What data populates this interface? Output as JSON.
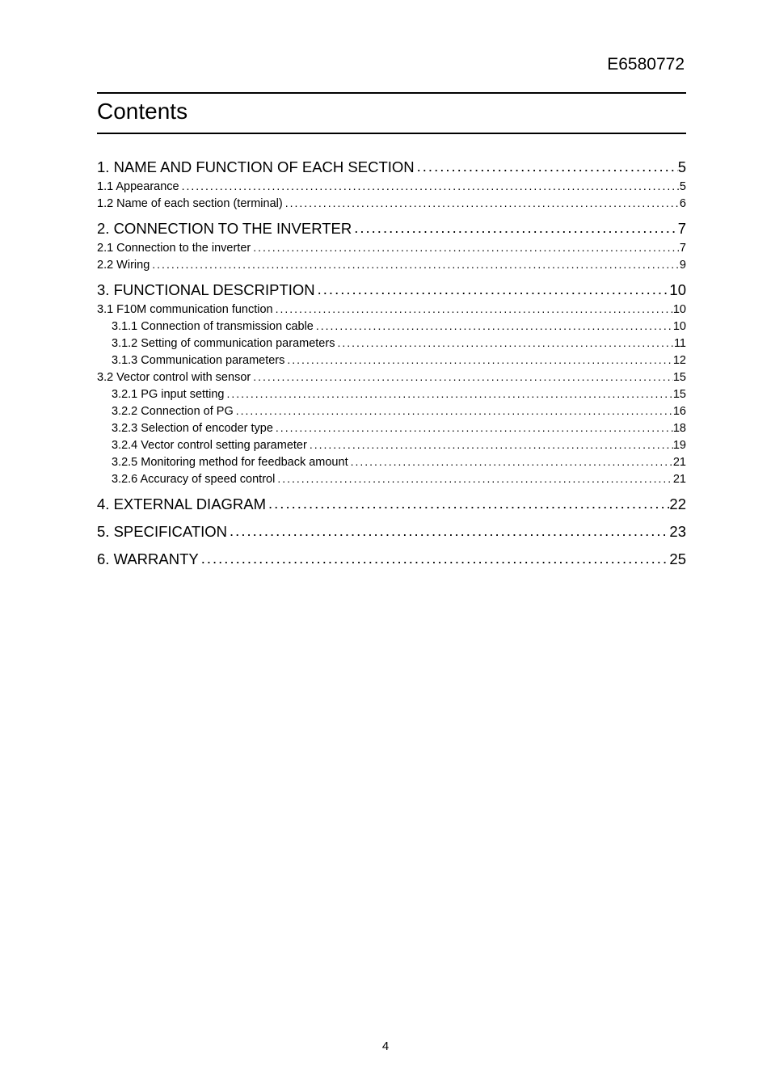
{
  "document_id": "E6580772",
  "contents_title": "Contents",
  "footer_page_number": "4",
  "dot_fill": "..........................................................................................................................................................................................................................................",
  "toc": [
    {
      "level": 1,
      "label": "1. NAME AND FUNCTION OF EACH SECTION",
      "page": "5"
    },
    {
      "level": 2,
      "label": "1.1 Appearance",
      "page": "5"
    },
    {
      "level": 2,
      "label": "1.2 Name of each section (terminal)",
      "page": "6"
    },
    {
      "level": 1,
      "label": "2. CONNECTION TO THE INVERTER",
      "page": "7"
    },
    {
      "level": 2,
      "label": "2.1 Connection to the inverter",
      "page": "7"
    },
    {
      "level": 2,
      "label": "2.2 Wiring",
      "page": "9"
    },
    {
      "level": 1,
      "label": "3. FUNCTIONAL DESCRIPTION",
      "page": "10"
    },
    {
      "level": 2,
      "label": "3.1 F10M communication function",
      "page": "10"
    },
    {
      "level": 3,
      "label": "3.1.1 Connection of transmission cable",
      "page": "10"
    },
    {
      "level": 3,
      "label": "3.1.2 Setting of communication parameters",
      "page": "11"
    },
    {
      "level": 3,
      "label": "3.1.3 Communication parameters",
      "page": "12"
    },
    {
      "level": 2,
      "label": "3.2 Vector control with sensor",
      "page": "15"
    },
    {
      "level": 3,
      "label": "3.2.1 PG input setting",
      "page": "15"
    },
    {
      "level": 3,
      "label": "3.2.2 Connection of PG",
      "page": "16"
    },
    {
      "level": 3,
      "label": "3.2.3 Selection of encoder type",
      "page": "18"
    },
    {
      "level": 3,
      "label": "3.2.4 Vector control setting parameter",
      "page": "19"
    },
    {
      "level": 3,
      "label": "3.2.5 Monitoring method for feedback amount",
      "page": "21"
    },
    {
      "level": 3,
      "label": "3.2.6 Accuracy of speed control",
      "page": "21"
    },
    {
      "level": 1,
      "label": "4. EXTERNAL DIAGRAM",
      "page": "22"
    },
    {
      "level": 1,
      "label": "5. SPECIFICATION",
      "page": "23"
    },
    {
      "level": 1,
      "label": "6. WARRANTY",
      "page": "25"
    }
  ]
}
